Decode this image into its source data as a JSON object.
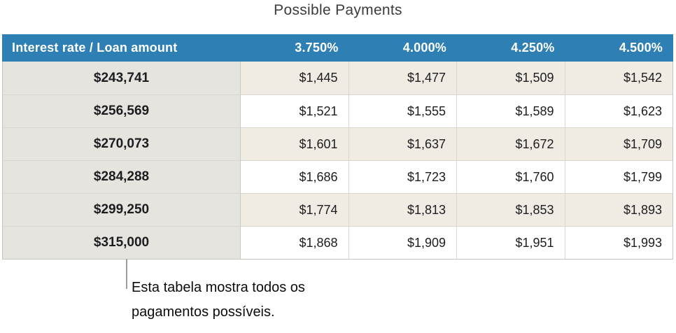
{
  "title": "Possible Payments",
  "table": {
    "header": [
      "Interest rate / Loan amount",
      "3.750%",
      "4.000%",
      "4.250%",
      "4.500%"
    ],
    "rows": [
      {
        "loan": "$243,741",
        "payments": [
          "$1,445",
          "$1,477",
          "$1,509",
          "$1,542"
        ]
      },
      {
        "loan": "$256,569",
        "payments": [
          "$1,521",
          "$1,555",
          "$1,589",
          "$1,623"
        ]
      },
      {
        "loan": "$270,073",
        "payments": [
          "$1,601",
          "$1,637",
          "$1,672",
          "$1,709"
        ]
      },
      {
        "loan": "$284,288",
        "payments": [
          "$1,686",
          "$1,723",
          "$1,760",
          "$1,799"
        ]
      },
      {
        "loan": "$299,250",
        "payments": [
          "$1,774",
          "$1,813",
          "$1,853",
          "$1,893"
        ]
      },
      {
        "loan": "$315,000",
        "payments": [
          "$1,868",
          "$1,909",
          "$1,951",
          "$1,993"
        ]
      }
    ]
  },
  "callout": {
    "lines": [
      "Esta tabela mostra todos os",
      "pagamentos possíveis."
    ]
  },
  "colors": {
    "header_bg": "#2e7fb3",
    "header_text": "#ffffff",
    "loan_col_bg": "#e6e4df",
    "row_bg": "#ffffff",
    "row_alt_bg": "#f0ece3",
    "callout_line": "#9d9d9b"
  }
}
